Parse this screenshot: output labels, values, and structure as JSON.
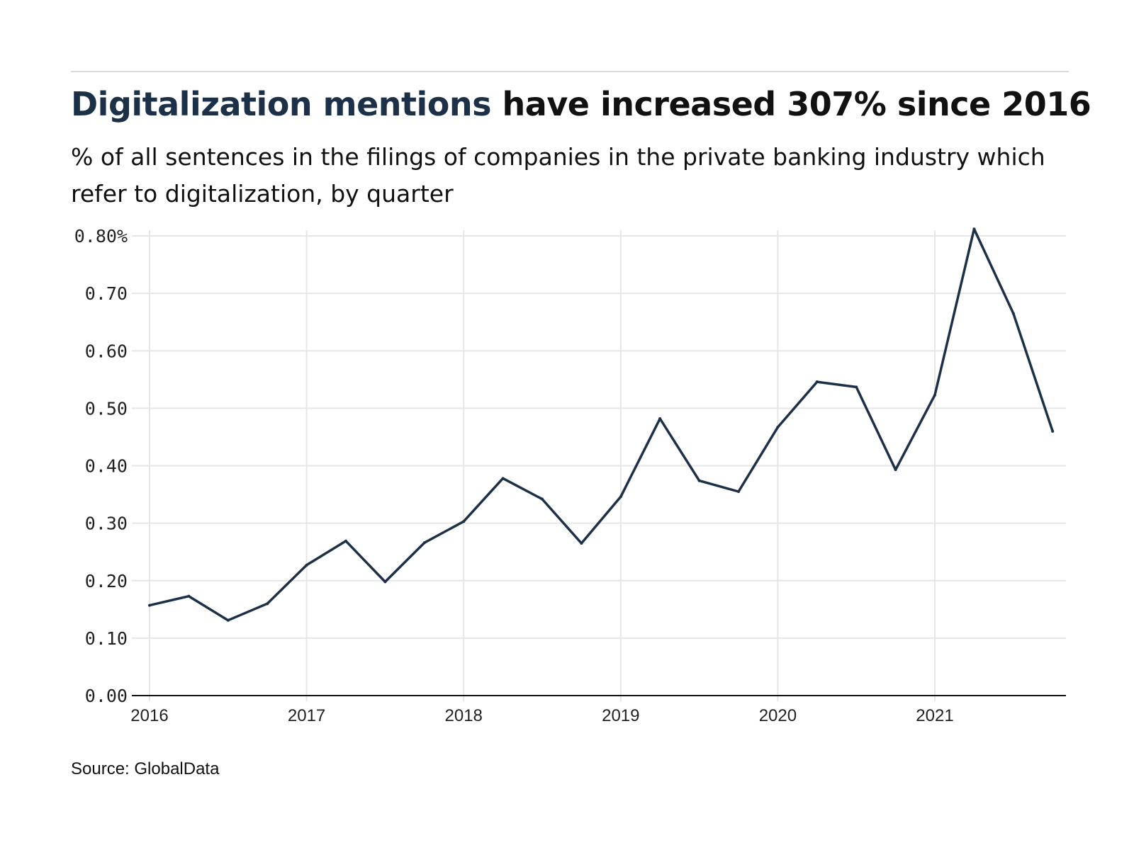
{
  "header": {
    "title_highlight": "Digitalization mentions",
    "title_rest": " have increased 307% since 2016",
    "subtitle": "% of all sentences in the filings of companies in the private banking industry which refer to digitalization, by quarter"
  },
  "footer": {
    "source": "Source: GlobalData"
  },
  "colors": {
    "line": "#1c3048",
    "grid": "#e6e6e6",
    "axis": "#111111",
    "title_highlight": "#1c3048"
  },
  "chart_data": {
    "type": "line",
    "title": "Digitalization mentions have increased 307% since 2016",
    "xlabel": "",
    "ylabel": "",
    "x": [
      "2016 Q1",
      "2016 Q2",
      "2016 Q3",
      "2016 Q4",
      "2017 Q1",
      "2017 Q2",
      "2017 Q3",
      "2017 Q4",
      "2018 Q1",
      "2018 Q2",
      "2018 Q3",
      "2018 Q4",
      "2019 Q1",
      "2019 Q2",
      "2019 Q3",
      "2019 Q4",
      "2020 Q1",
      "2020 Q2",
      "2020 Q3",
      "2020 Q4",
      "2021 Q1",
      "2021 Q2",
      "2021 Q3",
      "2021 Q4"
    ],
    "series": [
      {
        "values": [
          0.157,
          0.173,
          0.131,
          0.16,
          0.227,
          0.269,
          0.198,
          0.266,
          0.303,
          0.378,
          0.342,
          0.265,
          0.346,
          0.482,
          0.374,
          0.355,
          0.467,
          0.546,
          0.537,
          0.393,
          0.523,
          0.812,
          0.665,
          0.46
        ]
      }
    ],
    "xticks": [
      "2016",
      "2017",
      "2018",
      "2019",
      "2020",
      "2021"
    ],
    "yticks": [
      "0.00",
      "0.10",
      "0.20",
      "0.30",
      "0.40",
      "0.50",
      "0.60",
      "0.70",
      "0.80%"
    ],
    "ylim": [
      0,
      0.8
    ],
    "grid": true,
    "legend": "none"
  }
}
